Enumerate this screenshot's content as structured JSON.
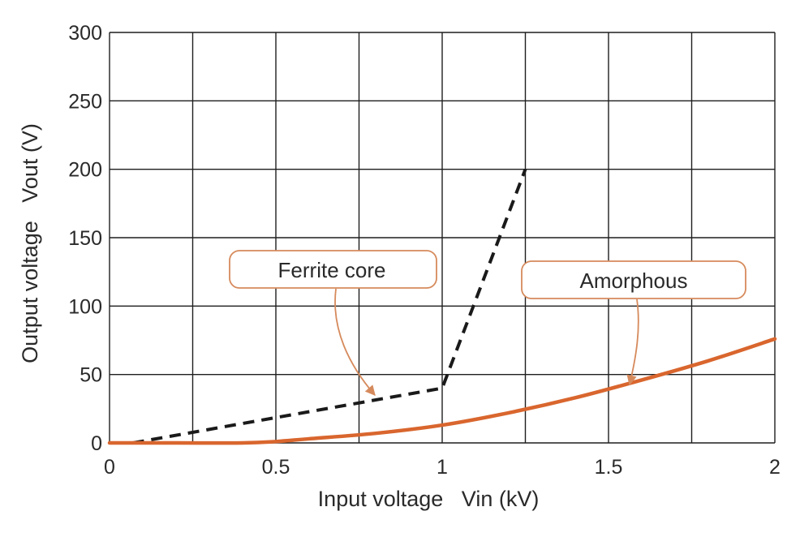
{
  "chart_data": {
    "type": "line",
    "title": "",
    "xlabel": "Input voltage   Vin (kV)",
    "ylabel": "Output voltage   Vout (V)",
    "xlim": [
      0,
      2
    ],
    "ylim": [
      0,
      300
    ],
    "xticks": [
      0,
      0.25,
      0.5,
      0.75,
      1,
      1.25,
      1.5,
      1.75,
      2
    ],
    "xtick_labels": [
      "0",
      "",
      "0.5",
      "",
      "1",
      "",
      "1.5",
      "",
      "2"
    ],
    "yticks": [
      0,
      50,
      100,
      150,
      200,
      250,
      300
    ],
    "ytick_labels": [
      "0",
      "50",
      "100",
      "150",
      "200",
      "250",
      "300"
    ],
    "grid": true,
    "series": [
      {
        "name": "Ferrite core",
        "color": "#1a1a1a",
        "style": "dashed",
        "x": [
          0.07,
          1.0,
          1.25
        ],
        "y": [
          0,
          40,
          200
        ]
      },
      {
        "name": "Amorphous",
        "color": "#d9662e",
        "style": "solid",
        "x": [
          0,
          0.2,
          0.4,
          0.5,
          0.6,
          0.8,
          1.0,
          1.2,
          1.4,
          1.6,
          1.8,
          2.0
        ],
        "y": [
          0,
          0,
          0,
          1,
          3,
          7,
          13,
          22,
          33,
          46,
          60,
          76
        ]
      }
    ],
    "annotations": [
      {
        "text": "Ferrite core",
        "series": 0,
        "target": [
          0.8,
          33
        ]
      },
      {
        "text": "Amorphous",
        "series": 1,
        "target": [
          1.56,
          44
        ]
      }
    ],
    "colors": {
      "grid": "#1e1e1e",
      "callout_border": "#d68a5c",
      "callout_leader": "#d68a5c",
      "text": "#2a2a2a"
    }
  }
}
